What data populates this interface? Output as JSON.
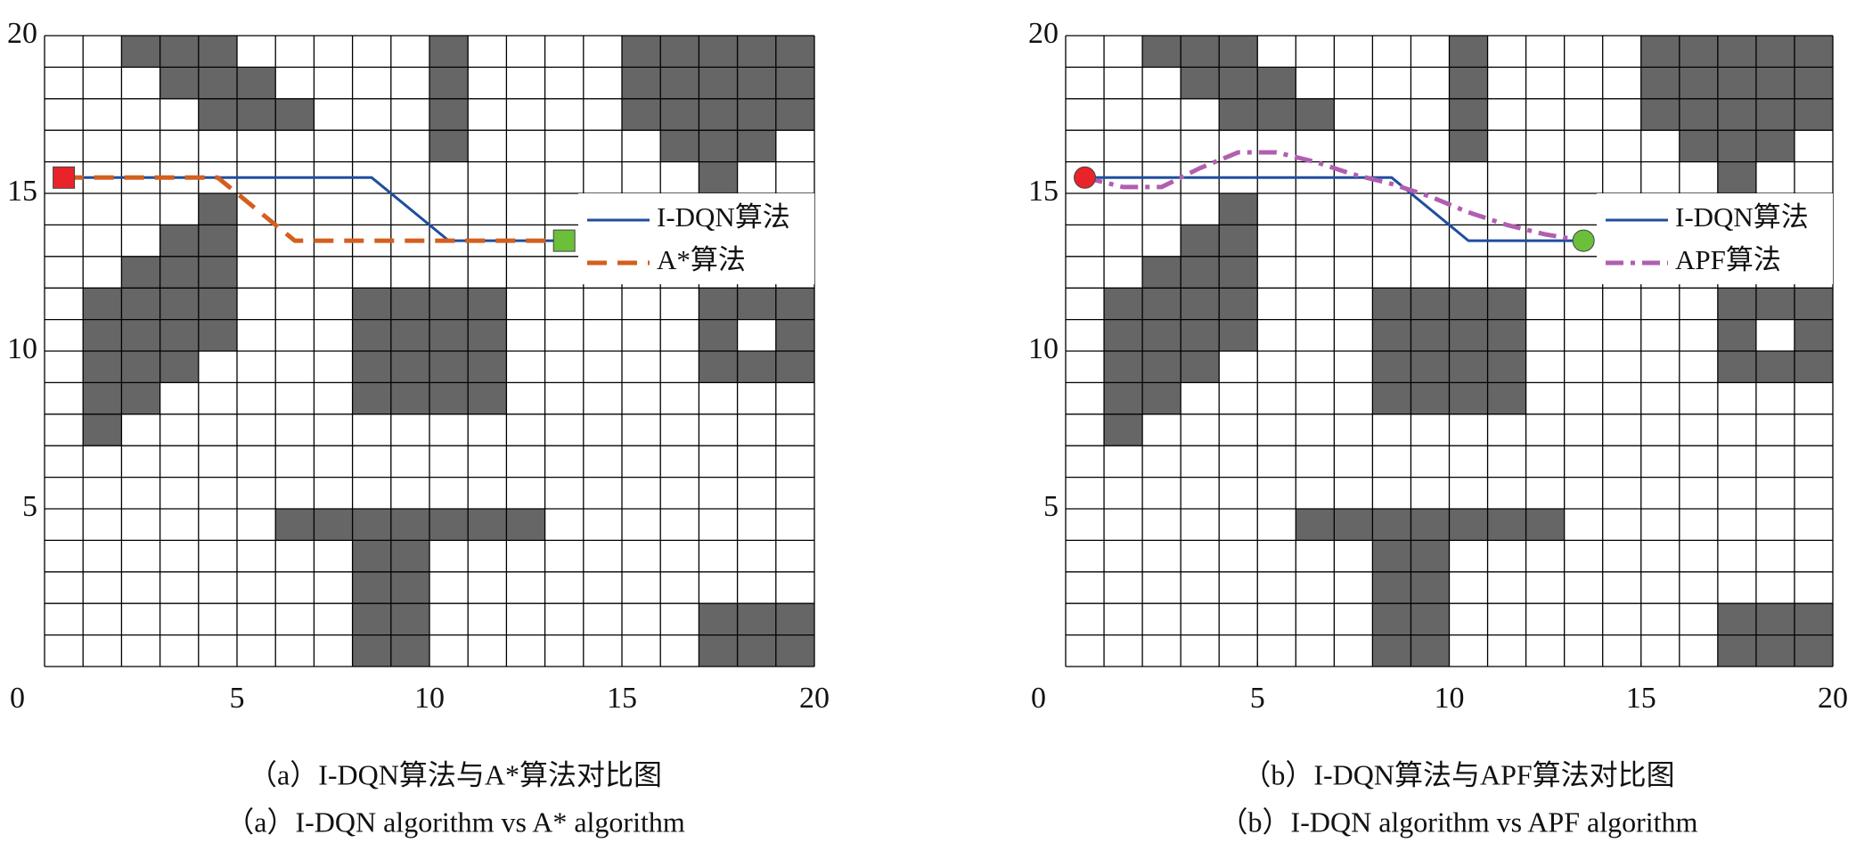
{
  "chart_data": [
    {
      "type": "grid-path",
      "caption": [
        "（a）I-DQN算法与A*算法对比图",
        "（a）I-DQN algorithm vs A* algorithm"
      ],
      "xlim": [
        0,
        20
      ],
      "ylim": [
        0,
        20
      ],
      "xticks": [
        0,
        5,
        10,
        15,
        20
      ],
      "yticks": [
        5,
        10,
        15,
        20
      ],
      "grid": true,
      "obstacle_color": "#666666",
      "legend": "right",
      "obstacles": [
        [
          2,
          19
        ],
        [
          3,
          19
        ],
        [
          4,
          19
        ],
        [
          10,
          19
        ],
        [
          15,
          19
        ],
        [
          16,
          19
        ],
        [
          17,
          19
        ],
        [
          18,
          19
        ],
        [
          19,
          19
        ],
        [
          3,
          18
        ],
        [
          4,
          18
        ],
        [
          5,
          18
        ],
        [
          10,
          18
        ],
        [
          15,
          18
        ],
        [
          16,
          18
        ],
        [
          17,
          18
        ],
        [
          18,
          18
        ],
        [
          19,
          18
        ],
        [
          4,
          17
        ],
        [
          5,
          17
        ],
        [
          6,
          17
        ],
        [
          10,
          17
        ],
        [
          15,
          17
        ],
        [
          16,
          17
        ],
        [
          17,
          17
        ],
        [
          18,
          17
        ],
        [
          19,
          17
        ],
        [
          10,
          16
        ],
        [
          16,
          16
        ],
        [
          17,
          16
        ],
        [
          18,
          16
        ],
        [
          17,
          15
        ],
        [
          4,
          14
        ],
        [
          3,
          13
        ],
        [
          4,
          13
        ],
        [
          2,
          12
        ],
        [
          3,
          12
        ],
        [
          4,
          12
        ],
        [
          1,
          11
        ],
        [
          2,
          11
        ],
        [
          3,
          11
        ],
        [
          4,
          11
        ],
        [
          8,
          11
        ],
        [
          9,
          11
        ],
        [
          10,
          11
        ],
        [
          11,
          11
        ],
        [
          17,
          11
        ],
        [
          18,
          11
        ],
        [
          19,
          11
        ],
        [
          1,
          10
        ],
        [
          2,
          10
        ],
        [
          3,
          10
        ],
        [
          4,
          10
        ],
        [
          8,
          10
        ],
        [
          9,
          10
        ],
        [
          10,
          10
        ],
        [
          11,
          10
        ],
        [
          17,
          10
        ],
        [
          19,
          10
        ],
        [
          1,
          9
        ],
        [
          2,
          9
        ],
        [
          3,
          9
        ],
        [
          8,
          9
        ],
        [
          9,
          9
        ],
        [
          10,
          9
        ],
        [
          11,
          9
        ],
        [
          17,
          9
        ],
        [
          18,
          9
        ],
        [
          19,
          9
        ],
        [
          1,
          8
        ],
        [
          2,
          8
        ],
        [
          8,
          8
        ],
        [
          9,
          8
        ],
        [
          10,
          8
        ],
        [
          11,
          8
        ],
        [
          1,
          7
        ],
        [
          6,
          4
        ],
        [
          7,
          4
        ],
        [
          8,
          4
        ],
        [
          9,
          4
        ],
        [
          10,
          4
        ],
        [
          11,
          4
        ],
        [
          12,
          4
        ],
        [
          8,
          3
        ],
        [
          9,
          3
        ],
        [
          8,
          2
        ],
        [
          9,
          2
        ],
        [
          8,
          1
        ],
        [
          9,
          1
        ],
        [
          17,
          1
        ],
        [
          18,
          1
        ],
        [
          19,
          1
        ],
        [
          8,
          0
        ],
        [
          9,
          0
        ],
        [
          17,
          0
        ],
        [
          18,
          0
        ],
        [
          19,
          0
        ]
      ],
      "series": [
        {
          "name": "I-DQN算法",
          "color": "#1f4e9e",
          "dash": "solid",
          "x": [
            0.5,
            8.5,
            10.5,
            13.5
          ],
          "y": [
            15.5,
            15.5,
            13.5,
            13.5
          ]
        },
        {
          "name": "A*算法",
          "color": "#d35f1f",
          "dash": "dashed",
          "x": [
            0.5,
            4.5,
            6.5,
            13.5
          ],
          "y": [
            15.5,
            15.5,
            13.5,
            13.5
          ]
        }
      ],
      "start": {
        "x": 0.5,
        "y": 15.5,
        "color": "#e8232a",
        "shape": "square"
      },
      "goal": {
        "x": 13.5,
        "y": 13.5,
        "color": "#6cbf3a",
        "shape": "square"
      }
    },
    {
      "type": "grid-path",
      "caption": [
        "（b）I-DQN算法与APF算法对比图",
        "（b）I-DQN algorithm vs APF algorithm"
      ],
      "xlim": [
        0,
        20
      ],
      "ylim": [
        0,
        20
      ],
      "xticks": [
        0,
        5,
        10,
        15,
        20
      ],
      "yticks": [
        5,
        10,
        15,
        20
      ],
      "grid": true,
      "obstacle_color": "#666666",
      "legend": "right",
      "obstacles": [
        [
          2,
          19
        ],
        [
          3,
          19
        ],
        [
          4,
          19
        ],
        [
          10,
          19
        ],
        [
          15,
          19
        ],
        [
          16,
          19
        ],
        [
          17,
          19
        ],
        [
          18,
          19
        ],
        [
          19,
          19
        ],
        [
          3,
          18
        ],
        [
          4,
          18
        ],
        [
          5,
          18
        ],
        [
          10,
          18
        ],
        [
          15,
          18
        ],
        [
          16,
          18
        ],
        [
          17,
          18
        ],
        [
          18,
          18
        ],
        [
          19,
          18
        ],
        [
          4,
          17
        ],
        [
          5,
          17
        ],
        [
          6,
          17
        ],
        [
          10,
          17
        ],
        [
          15,
          17
        ],
        [
          16,
          17
        ],
        [
          17,
          17
        ],
        [
          18,
          17
        ],
        [
          19,
          17
        ],
        [
          10,
          16
        ],
        [
          16,
          16
        ],
        [
          17,
          16
        ],
        [
          18,
          16
        ],
        [
          17,
          15
        ],
        [
          4,
          14
        ],
        [
          3,
          13
        ],
        [
          4,
          13
        ],
        [
          2,
          12
        ],
        [
          3,
          12
        ],
        [
          4,
          12
        ],
        [
          1,
          11
        ],
        [
          2,
          11
        ],
        [
          3,
          11
        ],
        [
          4,
          11
        ],
        [
          8,
          11
        ],
        [
          9,
          11
        ],
        [
          10,
          11
        ],
        [
          11,
          11
        ],
        [
          17,
          11
        ],
        [
          18,
          11
        ],
        [
          19,
          11
        ],
        [
          1,
          10
        ],
        [
          2,
          10
        ],
        [
          3,
          10
        ],
        [
          4,
          10
        ],
        [
          8,
          10
        ],
        [
          9,
          10
        ],
        [
          10,
          10
        ],
        [
          11,
          10
        ],
        [
          17,
          10
        ],
        [
          19,
          10
        ],
        [
          1,
          9
        ],
        [
          2,
          9
        ],
        [
          3,
          9
        ],
        [
          8,
          9
        ],
        [
          9,
          9
        ],
        [
          10,
          9
        ],
        [
          11,
          9
        ],
        [
          17,
          9
        ],
        [
          18,
          9
        ],
        [
          19,
          9
        ],
        [
          1,
          8
        ],
        [
          2,
          8
        ],
        [
          8,
          8
        ],
        [
          9,
          8
        ],
        [
          10,
          8
        ],
        [
          11,
          8
        ],
        [
          1,
          7
        ],
        [
          6,
          4
        ],
        [
          7,
          4
        ],
        [
          8,
          4
        ],
        [
          9,
          4
        ],
        [
          10,
          4
        ],
        [
          11,
          4
        ],
        [
          12,
          4
        ],
        [
          8,
          3
        ],
        [
          9,
          3
        ],
        [
          8,
          2
        ],
        [
          9,
          2
        ],
        [
          8,
          1
        ],
        [
          9,
          1
        ],
        [
          17,
          1
        ],
        [
          18,
          1
        ],
        [
          19,
          1
        ],
        [
          8,
          0
        ],
        [
          9,
          0
        ],
        [
          17,
          0
        ],
        [
          18,
          0
        ],
        [
          19,
          0
        ]
      ],
      "series": [
        {
          "name": "I-DQN算法",
          "color": "#1f4e9e",
          "dash": "solid",
          "x": [
            0.5,
            8.5,
            10.5,
            13.5
          ],
          "y": [
            15.5,
            15.5,
            13.5,
            13.5
          ]
        },
        {
          "name": "APF算法",
          "color": "#b05fb0",
          "dash": "dashdot",
          "x": [
            0.5,
            1.5,
            2.5,
            3.5,
            4.5,
            5.5,
            6.5,
            7.5,
            8.5,
            9.5,
            10.5,
            11.5,
            12.5,
            13.5
          ],
          "y": [
            15.5,
            15.2,
            15.2,
            15.8,
            16.3,
            16.3,
            16.0,
            15.6,
            15.3,
            14.9,
            14.4,
            14.0,
            13.7,
            13.5
          ]
        }
      ],
      "start": {
        "x": 0.5,
        "y": 15.5,
        "color": "#e8232a",
        "shape": "circle"
      },
      "goal": {
        "x": 13.5,
        "y": 13.5,
        "color": "#6cbf3a",
        "shape": "circle"
      }
    }
  ]
}
